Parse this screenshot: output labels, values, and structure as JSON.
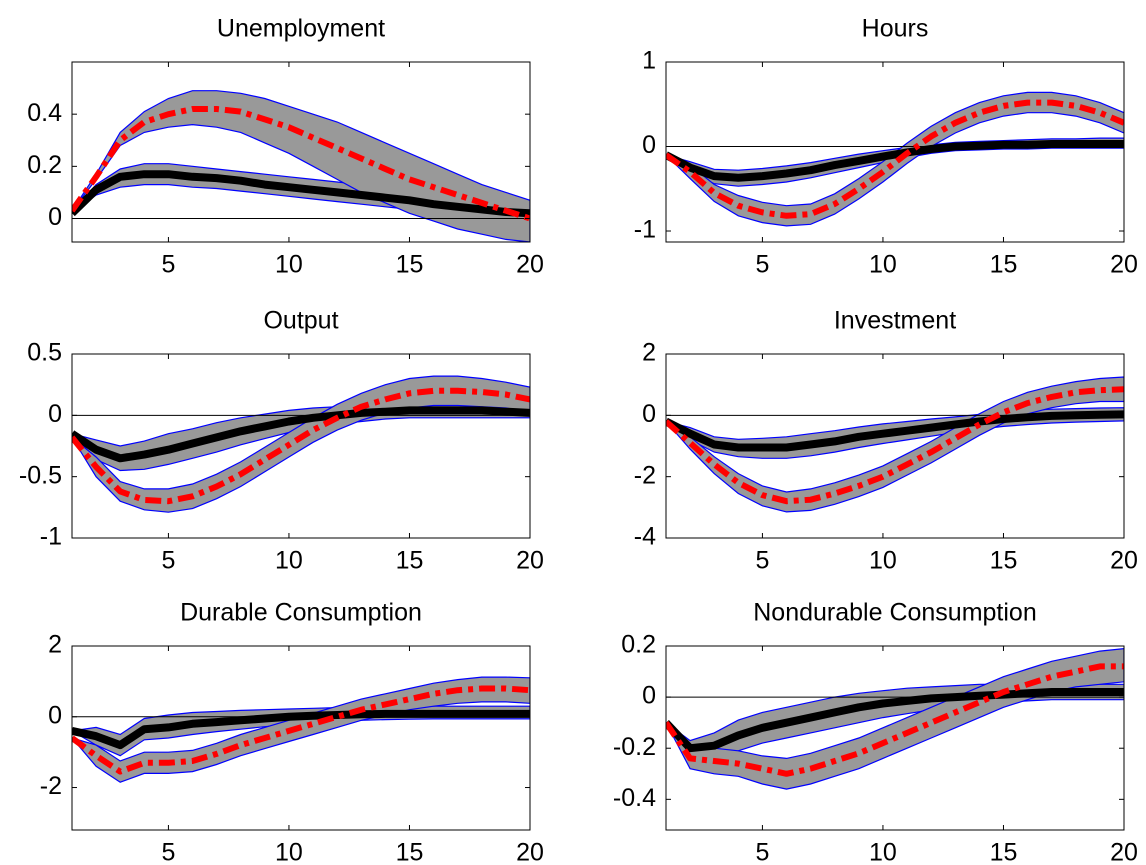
{
  "chart_data": [
    {
      "type": "line",
      "title": "Unemployment",
      "x": [
        1,
        2,
        3,
        4,
        5,
        6,
        7,
        8,
        9,
        10,
        11,
        12,
        13,
        14,
        15,
        16,
        17,
        18,
        19,
        20
      ],
      "xlim": [
        1,
        20
      ],
      "xticks": [
        5,
        10,
        15,
        20
      ],
      "ylim": [
        -0.09,
        0.6
      ],
      "yticks": [
        0,
        0.2,
        0.4
      ],
      "zero_line": true,
      "band_color": "#999999",
      "band_edge_color": "#0000ff",
      "series": [
        {
          "color": "#000000",
          "style": "solid",
          "values": [
            0.02,
            0.11,
            0.16,
            0.17,
            0.17,
            0.16,
            0.155,
            0.145,
            0.13,
            0.12,
            0.11,
            0.1,
            0.09,
            0.08,
            0.07,
            0.055,
            0.045,
            0.035,
            0.025,
            0.02
          ],
          "lower": [
            0.02,
            0.09,
            0.12,
            0.13,
            0.13,
            0.12,
            0.115,
            0.105,
            0.095,
            0.085,
            0.075,
            0.065,
            0.055,
            0.045,
            0.035,
            0.025,
            0.015,
            0.005,
            -0.005,
            -0.01
          ],
          "upper": [
            0.02,
            0.13,
            0.19,
            0.21,
            0.21,
            0.2,
            0.19,
            0.18,
            0.17,
            0.16,
            0.15,
            0.14,
            0.13,
            0.12,
            0.11,
            0.1,
            0.09,
            0.08,
            0.07,
            0.06
          ]
        },
        {
          "color": "#ff0000",
          "style": "dashdot",
          "values": [
            0.03,
            0.16,
            0.3,
            0.37,
            0.4,
            0.42,
            0.42,
            0.41,
            0.38,
            0.35,
            0.31,
            0.27,
            0.23,
            0.19,
            0.15,
            0.12,
            0.09,
            0.06,
            0.03,
            0.0
          ],
          "lower": [
            0.03,
            0.15,
            0.28,
            0.33,
            0.35,
            0.36,
            0.35,
            0.33,
            0.29,
            0.25,
            0.2,
            0.15,
            0.1,
            0.06,
            0.02,
            -0.01,
            -0.04,
            -0.06,
            -0.08,
            -0.09
          ],
          "upper": [
            0.03,
            0.17,
            0.33,
            0.41,
            0.46,
            0.49,
            0.49,
            0.48,
            0.46,
            0.43,
            0.4,
            0.37,
            0.33,
            0.29,
            0.25,
            0.21,
            0.17,
            0.13,
            0.1,
            0.07
          ]
        }
      ]
    },
    {
      "type": "line",
      "title": "Hours",
      "x": [
        1,
        2,
        3,
        4,
        5,
        6,
        7,
        8,
        9,
        10,
        11,
        12,
        13,
        14,
        15,
        16,
        17,
        18,
        19,
        20
      ],
      "xlim": [
        1,
        20
      ],
      "xticks": [
        5,
        10,
        15,
        20
      ],
      "ylim": [
        -1.13,
        1
      ],
      "yticks": [
        -1,
        0,
        1
      ],
      "zero_line": true,
      "band_color": "#999999",
      "band_edge_color": "#0000ff",
      "series": [
        {
          "color": "#000000",
          "style": "solid",
          "values": [
            -0.1,
            -0.25,
            -0.35,
            -0.37,
            -0.35,
            -0.32,
            -0.28,
            -0.22,
            -0.17,
            -0.12,
            -0.07,
            -0.03,
            0,
            0.01,
            0.02,
            0.02,
            0.03,
            0.03,
            0.03,
            0.03
          ],
          "lower": [
            -0.1,
            -0.32,
            -0.44,
            -0.47,
            -0.45,
            -0.42,
            -0.37,
            -0.31,
            -0.25,
            -0.19,
            -0.13,
            -0.08,
            -0.05,
            -0.04,
            -0.03,
            -0.03,
            -0.02,
            -0.02,
            -0.02,
            -0.02
          ],
          "upper": [
            -0.1,
            -0.18,
            -0.27,
            -0.28,
            -0.26,
            -0.23,
            -0.19,
            -0.14,
            -0.09,
            -0.05,
            -0.01,
            0.02,
            0.05,
            0.06,
            0.07,
            0.08,
            0.09,
            0.09,
            0.1,
            0.1
          ]
        },
        {
          "color": "#ff0000",
          "style": "dashdot",
          "values": [
            -0.1,
            -0.3,
            -0.55,
            -0.7,
            -0.78,
            -0.82,
            -0.8,
            -0.68,
            -0.5,
            -0.3,
            -0.08,
            0.12,
            0.28,
            0.4,
            0.48,
            0.52,
            0.52,
            0.48,
            0.4,
            0.28
          ],
          "lower": [
            -0.1,
            -0.38,
            -0.65,
            -0.82,
            -0.9,
            -0.94,
            -0.92,
            -0.8,
            -0.62,
            -0.42,
            -0.2,
            0,
            0.16,
            0.28,
            0.36,
            0.4,
            0.4,
            0.36,
            0.28,
            0.16
          ],
          "upper": [
            -0.1,
            -0.22,
            -0.45,
            -0.58,
            -0.66,
            -0.7,
            -0.68,
            -0.56,
            -0.38,
            -0.18,
            0.04,
            0.24,
            0.4,
            0.52,
            0.6,
            0.64,
            0.64,
            0.6,
            0.52,
            0.4
          ]
        }
      ]
    },
    {
      "type": "line",
      "title": "Output",
      "x": [
        1,
        2,
        3,
        4,
        5,
        6,
        7,
        8,
        9,
        10,
        11,
        12,
        13,
        14,
        15,
        16,
        17,
        18,
        19,
        20
      ],
      "xlim": [
        1,
        20
      ],
      "xticks": [
        5,
        10,
        15,
        20
      ],
      "ylim": [
        -1,
        0.5
      ],
      "yticks": [
        -1,
        -0.5,
        0,
        0.5
      ],
      "zero_line": true,
      "band_color": "#999999",
      "band_edge_color": "#0000ff",
      "series": [
        {
          "color": "#000000",
          "style": "solid",
          "values": [
            -0.15,
            -0.28,
            -0.35,
            -0.32,
            -0.28,
            -0.23,
            -0.18,
            -0.13,
            -0.09,
            -0.05,
            -0.02,
            0,
            0.02,
            0.03,
            0.04,
            0.04,
            0.04,
            0.04,
            0.03,
            0.02
          ],
          "lower": [
            -0.15,
            -0.36,
            -0.45,
            -0.44,
            -0.4,
            -0.35,
            -0.3,
            -0.24,
            -0.19,
            -0.14,
            -0.1,
            -0.07,
            -0.05,
            -0.03,
            -0.02,
            -0.02,
            -0.02,
            -0.02,
            -0.02,
            -0.02
          ],
          "upper": [
            -0.15,
            -0.2,
            -0.25,
            -0.21,
            -0.15,
            -0.11,
            -0.06,
            -0.02,
            0.01,
            0.04,
            0.06,
            0.07,
            0.08,
            0.09,
            0.1,
            0.1,
            0.1,
            0.1,
            0.09,
            0.08
          ]
        },
        {
          "color": "#ff0000",
          "style": "dashdot",
          "values": [
            -0.18,
            -0.42,
            -0.62,
            -0.69,
            -0.7,
            -0.66,
            -0.58,
            -0.48,
            -0.36,
            -0.24,
            -0.12,
            -0.02,
            0.07,
            0.13,
            0.18,
            0.2,
            0.2,
            0.19,
            0.17,
            0.13
          ],
          "lower": [
            -0.18,
            -0.5,
            -0.7,
            -0.77,
            -0.79,
            -0.76,
            -0.68,
            -0.58,
            -0.46,
            -0.34,
            -0.22,
            -0.12,
            -0.04,
            0.02,
            0.06,
            0.08,
            0.08,
            0.07,
            0.06,
            0.03
          ],
          "upper": [
            -0.18,
            -0.34,
            -0.54,
            -0.6,
            -0.6,
            -0.56,
            -0.48,
            -0.38,
            -0.26,
            -0.14,
            -0.02,
            0.09,
            0.18,
            0.25,
            0.3,
            0.32,
            0.32,
            0.3,
            0.27,
            0.23
          ]
        }
      ]
    },
    {
      "type": "line",
      "title": "Investment",
      "x": [
        1,
        2,
        3,
        4,
        5,
        6,
        7,
        8,
        9,
        10,
        11,
        12,
        13,
        14,
        15,
        16,
        17,
        18,
        19,
        20
      ],
      "xlim": [
        1,
        20
      ],
      "xticks": [
        5,
        10,
        15,
        20
      ],
      "ylim": [
        -4,
        2
      ],
      "yticks": [
        -4,
        -2,
        0,
        2
      ],
      "zero_line": true,
      "band_color": "#999999",
      "band_edge_color": "#0000ff",
      "series": [
        {
          "color": "#000000",
          "style": "solid",
          "values": [
            -0.2,
            -0.6,
            -0.95,
            -1.05,
            -1.05,
            -1.05,
            -0.95,
            -0.85,
            -0.7,
            -0.6,
            -0.5,
            -0.4,
            -0.3,
            -0.2,
            -0.12,
            -0.06,
            -0.02,
            0,
            0.02,
            0.03
          ],
          "lower": [
            -0.2,
            -0.8,
            -1.2,
            -1.35,
            -1.4,
            -1.4,
            -1.32,
            -1.2,
            -1.05,
            -0.92,
            -0.8,
            -0.68,
            -0.56,
            -0.45,
            -0.36,
            -0.3,
            -0.25,
            -0.22,
            -0.2,
            -0.18
          ],
          "upper": [
            -0.2,
            -0.4,
            -0.7,
            -0.78,
            -0.75,
            -0.7,
            -0.6,
            -0.5,
            -0.38,
            -0.28,
            -0.2,
            -0.12,
            -0.05,
            0.03,
            0.1,
            0.16,
            0.2,
            0.22,
            0.24,
            0.25
          ]
        },
        {
          "color": "#ff0000",
          "style": "dashdot",
          "values": [
            -0.2,
            -0.9,
            -1.6,
            -2.2,
            -2.6,
            -2.8,
            -2.75,
            -2.55,
            -2.3,
            -2.0,
            -1.6,
            -1.2,
            -0.75,
            -0.3,
            0.1,
            0.4,
            0.6,
            0.75,
            0.82,
            0.85
          ],
          "lower": [
            -0.2,
            -1.1,
            -1.9,
            -2.55,
            -2.95,
            -3.15,
            -3.1,
            -2.9,
            -2.65,
            -2.35,
            -1.95,
            -1.55,
            -1.1,
            -0.65,
            -0.25,
            0.05,
            0.25,
            0.38,
            0.45,
            0.45
          ],
          "upper": [
            -0.2,
            -0.7,
            -1.35,
            -1.9,
            -2.3,
            -2.5,
            -2.4,
            -2.2,
            -1.95,
            -1.65,
            -1.25,
            -0.85,
            -0.4,
            0.05,
            0.45,
            0.75,
            0.95,
            1.1,
            1.2,
            1.25
          ]
        }
      ]
    },
    {
      "type": "line",
      "title": "Durable Consumption",
      "x": [
        1,
        2,
        3,
        4,
        5,
        6,
        7,
        8,
        9,
        10,
        11,
        12,
        13,
        14,
        15,
        16,
        17,
        18,
        19,
        20
      ],
      "xlim": [
        1,
        20
      ],
      "xticks": [
        5,
        10,
        15,
        20
      ],
      "ylim": [
        -3.2,
        2
      ],
      "yticks": [
        -2,
        0,
        2
      ],
      "zero_line": true,
      "band_color": "#999999",
      "band_edge_color": "#0000ff",
      "series": [
        {
          "color": "#000000",
          "style": "solid",
          "values": [
            -0.4,
            -0.55,
            -0.8,
            -0.35,
            -0.3,
            -0.2,
            -0.15,
            -0.1,
            -0.05,
            0,
            0.03,
            0.05,
            0.07,
            0.08,
            0.08,
            0.08,
            0.08,
            0.08,
            0.08,
            0.08
          ],
          "lower": [
            -0.4,
            -0.8,
            -1.1,
            -0.65,
            -0.6,
            -0.5,
            -0.42,
            -0.35,
            -0.28,
            -0.22,
            -0.17,
            -0.13,
            -0.1,
            -0.08,
            -0.07,
            -0.06,
            -0.06,
            -0.06,
            -0.06,
            -0.06
          ],
          "upper": [
            -0.4,
            -0.3,
            -0.5,
            -0.05,
            0.05,
            0.12,
            0.15,
            0.18,
            0.2,
            0.22,
            0.24,
            0.26,
            0.28,
            0.3,
            0.3,
            0.3,
            0.3,
            0.3,
            0.3,
            0.3
          ]
        },
        {
          "color": "#ff0000",
          "style": "dashdot",
          "values": [
            -0.6,
            -1.1,
            -1.55,
            -1.3,
            -1.3,
            -1.25,
            -1.05,
            -0.8,
            -0.6,
            -0.4,
            -0.2,
            0,
            0.2,
            0.35,
            0.5,
            0.65,
            0.75,
            0.8,
            0.8,
            0.75
          ],
          "lower": [
            -0.6,
            -1.4,
            -1.85,
            -1.6,
            -1.6,
            -1.55,
            -1.35,
            -1.1,
            -0.9,
            -0.7,
            -0.5,
            -0.3,
            -0.1,
            0.05,
            0.2,
            0.3,
            0.38,
            0.42,
            0.42,
            0.38
          ],
          "upper": [
            -0.6,
            -0.8,
            -1.25,
            -1.0,
            -1.0,
            -0.95,
            -0.75,
            -0.5,
            -0.3,
            -0.1,
            0.1,
            0.3,
            0.5,
            0.65,
            0.8,
            0.95,
            1.05,
            1.12,
            1.12,
            1.1
          ]
        }
      ]
    },
    {
      "type": "line",
      "title": "Nondurable Consumption",
      "x": [
        1,
        2,
        3,
        4,
        5,
        6,
        7,
        8,
        9,
        10,
        11,
        12,
        13,
        14,
        15,
        16,
        17,
        18,
        19,
        20
      ],
      "xlim": [
        1,
        20
      ],
      "xticks": [
        5,
        10,
        15,
        20
      ],
      "ylim": [
        -0.52,
        0.2
      ],
      "yticks": [
        -0.4,
        -0.2,
        0,
        0.2
      ],
      "zero_line": true,
      "band_color": "#999999",
      "band_edge_color": "#0000ff",
      "series": [
        {
          "color": "#000000",
          "style": "solid",
          "values": [
            -0.1,
            -0.2,
            -0.19,
            -0.15,
            -0.12,
            -0.1,
            -0.08,
            -0.06,
            -0.04,
            -0.025,
            -0.015,
            -0.005,
            0,
            0.005,
            0.01,
            0.015,
            0.02,
            0.02,
            0.02,
            0.02
          ],
          "lower": [
            -0.1,
            -0.24,
            -0.24,
            -0.21,
            -0.18,
            -0.16,
            -0.14,
            -0.12,
            -0.1,
            -0.08,
            -0.065,
            -0.05,
            -0.04,
            -0.03,
            -0.02,
            -0.015,
            -0.01,
            -0.01,
            -0.01,
            -0.01
          ],
          "upper": [
            -0.1,
            -0.17,
            -0.14,
            -0.09,
            -0.06,
            -0.04,
            -0.02,
            0,
            0.015,
            0.025,
            0.035,
            0.04,
            0.045,
            0.05,
            0.05,
            0.05,
            0.05,
            0.05,
            0.05,
            0.05
          ]
        },
        {
          "color": "#ff0000",
          "style": "dashdot",
          "values": [
            -0.1,
            -0.24,
            -0.25,
            -0.26,
            -0.28,
            -0.3,
            -0.28,
            -0.25,
            -0.22,
            -0.18,
            -0.14,
            -0.1,
            -0.06,
            -0.02,
            0.02,
            0.05,
            0.08,
            0.1,
            0.12,
            0.12
          ],
          "lower": [
            -0.1,
            -0.28,
            -0.3,
            -0.31,
            -0.34,
            -0.36,
            -0.34,
            -0.31,
            -0.28,
            -0.24,
            -0.2,
            -0.16,
            -0.12,
            -0.08,
            -0.04,
            -0.01,
            0.02,
            0.04,
            0.05,
            0.06
          ],
          "upper": [
            -0.1,
            -0.2,
            -0.2,
            -0.21,
            -0.23,
            -0.24,
            -0.22,
            -0.19,
            -0.16,
            -0.12,
            -0.08,
            -0.04,
            0,
            0.04,
            0.08,
            0.11,
            0.14,
            0.16,
            0.18,
            0.19
          ]
        }
      ]
    }
  ]
}
